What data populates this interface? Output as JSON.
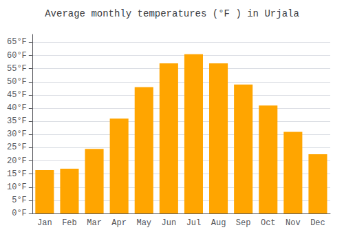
{
  "chart_data": {
    "type": "bar",
    "title": "Average monthly temperatures (°F ) in Urjala",
    "categories": [
      "Jan",
      "Feb",
      "Mar",
      "Apr",
      "May",
      "Jun",
      "Jul",
      "Aug",
      "Sep",
      "Oct",
      "Nov",
      "Dec"
    ],
    "values": [
      16.5,
      17.0,
      24.5,
      36.0,
      48.0,
      57.0,
      60.5,
      57.0,
      49.0,
      41.0,
      31.0,
      22.5
    ],
    "color": "#FFA500",
    "ylim": [
      0,
      68
    ],
    "yticks": [
      {
        "value": 0,
        "label": "0°F"
      },
      {
        "value": 5,
        "label": "5°F"
      },
      {
        "value": 10,
        "label": "10°F"
      },
      {
        "value": 15,
        "label": "15°F"
      },
      {
        "value": 20,
        "label": "20°F"
      },
      {
        "value": 25,
        "label": "25°F"
      },
      {
        "value": 30,
        "label": "30°F"
      },
      {
        "value": 35,
        "label": "35°F"
      },
      {
        "value": 40,
        "label": "40°F"
      },
      {
        "value": 45,
        "label": "45°F"
      },
      {
        "value": 50,
        "label": "50°F"
      },
      {
        "value": 55,
        "label": "55°F"
      },
      {
        "value": 60,
        "label": "60°F"
      },
      {
        "value": 65,
        "label": "65°F"
      }
    ],
    "grid": true
  }
}
